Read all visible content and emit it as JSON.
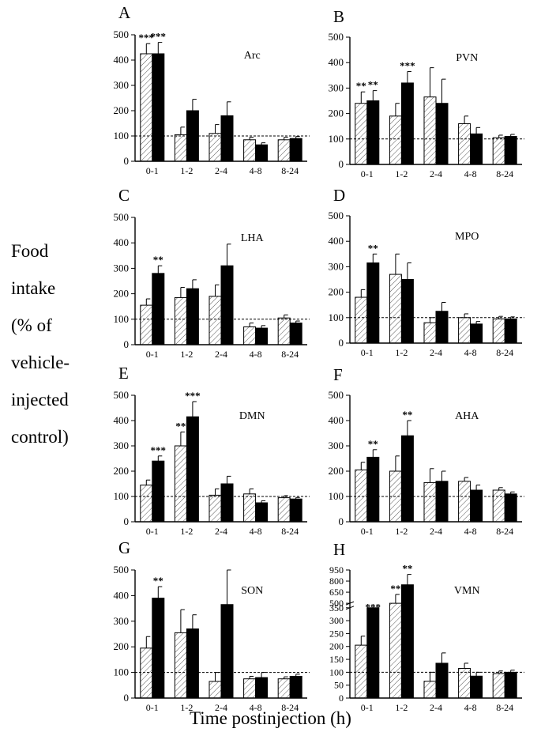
{
  "y_label_lines": [
    "Food",
    "intake",
    "(% of",
    "vehicle-",
    "injected",
    "control)"
  ],
  "x_label": "Time postinjection (h)",
  "colors": {
    "hatched": "#ffffff",
    "solid": "#000000",
    "line": "#000000"
  },
  "chart_data": [
    {
      "type": "bar",
      "letter": "A",
      "region": "Arc",
      "categories": [
        "0-1",
        "1-2",
        "2-4",
        "4-8",
        "8-24"
      ],
      "ylim": [
        0,
        500
      ],
      "yticks": [
        "0",
        "100",
        "200",
        "300",
        "400",
        "500"
      ],
      "reference_line": 100,
      "series": [
        {
          "values": [
            425,
            105,
            110,
            85,
            85
          ],
          "errors": [
            40,
            30,
            35,
            10,
            10
          ],
          "style": "hatched"
        },
        {
          "values": [
            425,
            200,
            180,
            65,
            90
          ],
          "errors": [
            45,
            45,
            55,
            8,
            8
          ],
          "style": "solid"
        }
      ],
      "significance": [
        {
          "category": 0,
          "series": 0,
          "label": "***"
        },
        {
          "category": 0,
          "series": 1,
          "label": "***"
        }
      ]
    },
    {
      "type": "bar",
      "letter": "B",
      "region": "PVN",
      "categories": [
        "0-1",
        "1-2",
        "2-4",
        "4-8",
        "8-24"
      ],
      "ylim": [
        0,
        500
      ],
      "yticks": [
        "0",
        "100",
        "200",
        "300",
        "400",
        "500"
      ],
      "reference_line": 100,
      "series": [
        {
          "values": [
            240,
            190,
            265,
            160,
            105
          ],
          "errors": [
            45,
            50,
            115,
            30,
            10
          ],
          "style": "hatched"
        },
        {
          "values": [
            250,
            320,
            240,
            120,
            110
          ],
          "errors": [
            40,
            45,
            95,
            25,
            8
          ],
          "style": "solid"
        }
      ],
      "significance": [
        {
          "category": 0,
          "series": 0,
          "label": "**"
        },
        {
          "category": 0,
          "series": 1,
          "label": "**"
        },
        {
          "category": 1,
          "series": 1,
          "label": "***"
        }
      ]
    },
    {
      "type": "bar",
      "letter": "C",
      "region": "LHA",
      "categories": [
        "0-1",
        "1-2",
        "2-4",
        "4-8",
        "8-24"
      ],
      "ylim": [
        0,
        500
      ],
      "yticks": [
        "0",
        "100",
        "200",
        "300",
        "400",
        "500"
      ],
      "reference_line": 100,
      "series": [
        {
          "values": [
            155,
            185,
            190,
            70,
            105
          ],
          "errors": [
            25,
            40,
            45,
            15,
            12
          ],
          "style": "hatched"
        },
        {
          "values": [
            280,
            220,
            310,
            65,
            85
          ],
          "errors": [
            30,
            35,
            85,
            10,
            8
          ],
          "style": "solid"
        }
      ],
      "significance": [
        {
          "category": 0,
          "series": 1,
          "label": "**"
        }
      ]
    },
    {
      "type": "bar",
      "letter": "D",
      "region": "MPO",
      "categories": [
        "0-1",
        "1-2",
        "2-4",
        "4-8",
        "8-24"
      ],
      "ylim": [
        0,
        500
      ],
      "yticks": [
        "0",
        "100",
        "200",
        "300",
        "400",
        "500"
      ],
      "reference_line": 100,
      "series": [
        {
          "values": [
            180,
            270,
            80,
            100,
            95
          ],
          "errors": [
            30,
            80,
            20,
            15,
            10
          ],
          "style": "hatched"
        },
        {
          "values": [
            315,
            250,
            125,
            75,
            95
          ],
          "errors": [
            35,
            65,
            35,
            10,
            8
          ],
          "style": "solid"
        }
      ],
      "significance": [
        {
          "category": 0,
          "series": 1,
          "label": "**"
        }
      ]
    },
    {
      "type": "bar",
      "letter": "E",
      "region": "DMN",
      "categories": [
        "0-1",
        "1-2",
        "2-4",
        "4-8",
        "8-24"
      ],
      "ylim": [
        0,
        500
      ],
      "yticks": [
        "0",
        "100",
        "200",
        "300",
        "400",
        "500"
      ],
      "reference_line": 100,
      "series": [
        {
          "values": [
            145,
            300,
            105,
            110,
            95
          ],
          "errors": [
            20,
            55,
            25,
            20,
            8
          ],
          "style": "hatched"
        },
        {
          "values": [
            240,
            415,
            150,
            75,
            90
          ],
          "errors": [
            20,
            60,
            30,
            8,
            6
          ],
          "style": "solid"
        }
      ],
      "significance": [
        {
          "category": 0,
          "series": 1,
          "label": "***"
        },
        {
          "category": 1,
          "series": 0,
          "label": "**"
        },
        {
          "category": 1,
          "series": 1,
          "label": "***"
        }
      ]
    },
    {
      "type": "bar",
      "letter": "F",
      "region": "AHA",
      "categories": [
        "0-1",
        "1-2",
        "2-4",
        "4-8",
        "8-24"
      ],
      "ylim": [
        0,
        500
      ],
      "yticks": [
        "0",
        "100",
        "200",
        "300",
        "400",
        "500"
      ],
      "reference_line": 100,
      "series": [
        {
          "values": [
            205,
            200,
            155,
            160,
            125
          ],
          "errors": [
            30,
            60,
            55,
            15,
            10
          ],
          "style": "hatched"
        },
        {
          "values": [
            255,
            340,
            160,
            125,
            110
          ],
          "errors": [
            30,
            60,
            40,
            20,
            8
          ],
          "style": "solid"
        }
      ],
      "significance": [
        {
          "category": 0,
          "series": 1,
          "label": "**"
        },
        {
          "category": 1,
          "series": 1,
          "label": "**"
        }
      ]
    },
    {
      "type": "bar",
      "letter": "G",
      "region": "SON",
      "categories": [
        "0-1",
        "1-2",
        "2-4",
        "4-8",
        "8-24"
      ],
      "ylim": [
        0,
        500
      ],
      "yticks": [
        "0",
        "100",
        "200",
        "300",
        "400",
        "500"
      ],
      "reference_line": 100,
      "series": [
        {
          "values": [
            195,
            255,
            65,
            75,
            75
          ],
          "errors": [
            45,
            90,
            35,
            10,
            8
          ],
          "style": "hatched"
        },
        {
          "values": [
            390,
            270,
            365,
            80,
            85
          ],
          "errors": [
            45,
            55,
            135,
            20,
            8
          ],
          "style": "solid"
        }
      ],
      "significance": [
        {
          "category": 0,
          "series": 1,
          "label": "**"
        }
      ]
    },
    {
      "type": "bar",
      "letter": "H",
      "region": "VMN",
      "categories": [
        "0-1",
        "1-2",
        "2-4",
        "4-8",
        "8-24"
      ],
      "ylim": [
        0,
        950
      ],
      "broken_axis": true,
      "yticks": [
        "0",
        "50",
        "100",
        "150",
        "200",
        "250",
        "300",
        "350",
        "500",
        "650",
        "800",
        "950"
      ],
      "reference_line": 100,
      "series": [
        {
          "values": [
            205,
            500,
            65,
            115,
            95
          ],
          "errors": [
            35,
            120,
            35,
            20,
            10
          ],
          "style": "hatched"
        },
        {
          "values": [
            350,
            750,
            135,
            85,
            100
          ],
          "errors": [
            20,
            140,
            40,
            15,
            8
          ],
          "style": "solid"
        }
      ],
      "significance": [
        {
          "category": 0,
          "series": 1,
          "label": "***"
        },
        {
          "category": 1,
          "series": 0,
          "label": "**"
        },
        {
          "category": 1,
          "series": 1,
          "label": "**"
        }
      ]
    }
  ]
}
